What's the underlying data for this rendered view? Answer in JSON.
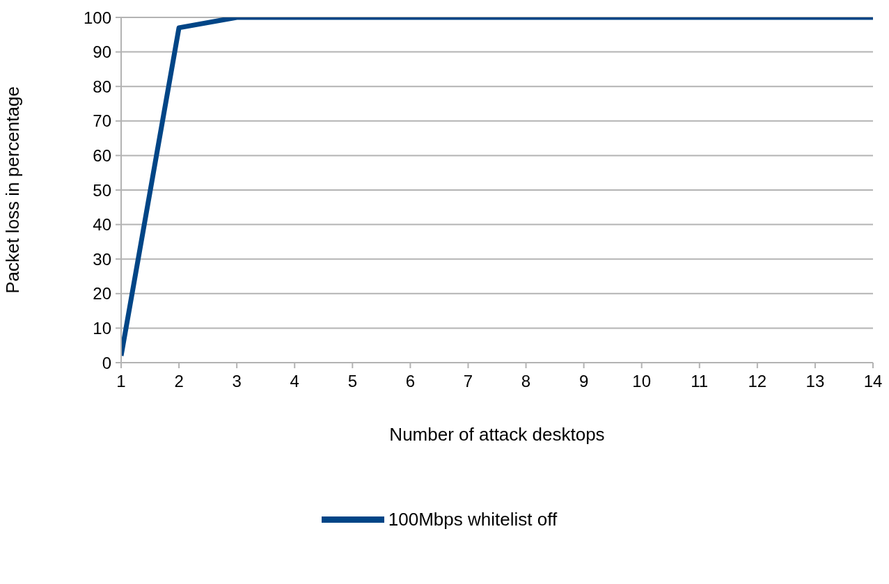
{
  "chart_data": {
    "type": "line",
    "xlabel": "Number of attack desktops",
    "ylabel": "Packet loss in percentage",
    "x": [
      1,
      2,
      3,
      4,
      5,
      6,
      7,
      8,
      9,
      10,
      11,
      12,
      13,
      14
    ],
    "series": [
      {
        "name": "100Mbps whitelist off",
        "color": "#004586",
        "values": [
          2,
          97,
          100,
          100,
          100,
          100,
          100,
          100,
          100,
          100,
          100,
          100,
          100,
          100
        ]
      }
    ],
    "xlim": [
      1,
      14
    ],
    "xticks": [
      1,
      2,
      3,
      4,
      5,
      6,
      7,
      8,
      9,
      10,
      11,
      12,
      13,
      14
    ],
    "ylim": [
      0,
      100
    ],
    "yticks": [
      0,
      10,
      20,
      30,
      40,
      50,
      60,
      70,
      80,
      90,
      100
    ],
    "grid": "y",
    "legend": "bottom",
    "marker": "none",
    "line_style": "solid"
  }
}
